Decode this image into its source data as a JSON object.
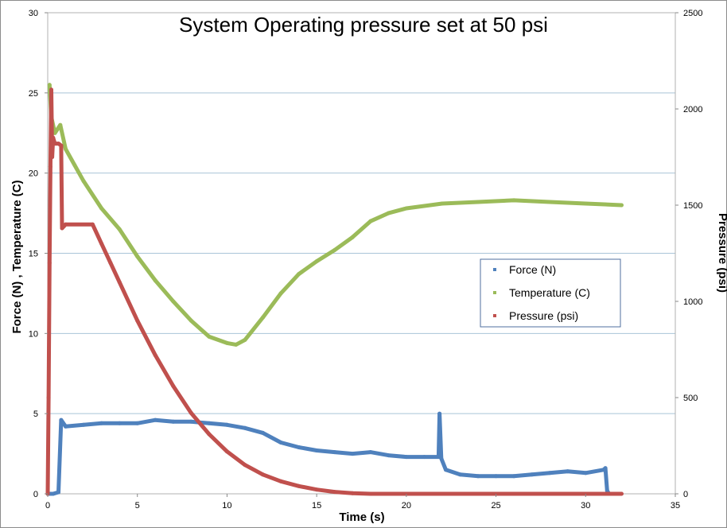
{
  "chart_data": {
    "type": "scatter",
    "title": "System Operating pressure set at 50 psi",
    "xlabel": "Time (s)",
    "ylabel_left": "Force (N) , Temperature (C)",
    "ylabel_right": "Pressure (psi)",
    "xlim": [
      0,
      35
    ],
    "ylim_left": [
      0,
      30
    ],
    "ylim_right": [
      0,
      2500
    ],
    "x_ticks": [
      "0",
      "5",
      "10",
      "15",
      "20",
      "25",
      "30",
      "35"
    ],
    "y_ticks_left": [
      "0",
      "5",
      "10",
      "15",
      "20",
      "25",
      "30"
    ],
    "y_ticks_right": [
      "0",
      "500",
      "1000",
      "1500",
      "2000",
      "2500"
    ],
    "grid": "horizontal",
    "legend_position": "right-center",
    "series": [
      {
        "name": "Force (N)",
        "axis": "left",
        "color": "#4f81bd",
        "points": [
          [
            0,
            0
          ],
          [
            0.3,
            0
          ],
          [
            0.6,
            0.1
          ],
          [
            0.75,
            4.6
          ],
          [
            1,
            4.2
          ],
          [
            2,
            4.3
          ],
          [
            3,
            4.4
          ],
          [
            4,
            4.4
          ],
          [
            5,
            4.4
          ],
          [
            6,
            4.6
          ],
          [
            7,
            4.5
          ],
          [
            8,
            4.5
          ],
          [
            9,
            4.4
          ],
          [
            10,
            4.3
          ],
          [
            11,
            4.1
          ],
          [
            12,
            3.8
          ],
          [
            13,
            3.2
          ],
          [
            14,
            2.9
          ],
          [
            15,
            2.7
          ],
          [
            16,
            2.6
          ],
          [
            17,
            2.5
          ],
          [
            18,
            2.6
          ],
          [
            19,
            2.4
          ],
          [
            20,
            2.3
          ],
          [
            21,
            2.3
          ],
          [
            21.8,
            2.3
          ],
          [
            21.85,
            5.0
          ],
          [
            21.95,
            2.2
          ],
          [
            22.2,
            1.5
          ],
          [
            23,
            1.2
          ],
          [
            24,
            1.1
          ],
          [
            25,
            1.1
          ],
          [
            26,
            1.1
          ],
          [
            27,
            1.2
          ],
          [
            28,
            1.3
          ],
          [
            29,
            1.4
          ],
          [
            30,
            1.3
          ],
          [
            31,
            1.5
          ],
          [
            31.1,
            1.6
          ],
          [
            31.2,
            0.2
          ],
          [
            31.3,
            0
          ]
        ]
      },
      {
        "name": "Temperature (C)",
        "axis": "left",
        "color": "#9bbb59",
        "points": [
          [
            0.1,
            25.5
          ],
          [
            0.2,
            23.5
          ],
          [
            0.4,
            22.5
          ],
          [
            0.7,
            23.0
          ],
          [
            1,
            21.5
          ],
          [
            1.5,
            20.5
          ],
          [
            2,
            19.5
          ],
          [
            3,
            17.8
          ],
          [
            4,
            16.5
          ],
          [
            5,
            14.8
          ],
          [
            6,
            13.3
          ],
          [
            7,
            12.0
          ],
          [
            8,
            10.8
          ],
          [
            9,
            9.8
          ],
          [
            10,
            9.4
          ],
          [
            10.5,
            9.3
          ],
          [
            11,
            9.6
          ],
          [
            12,
            11.0
          ],
          [
            13,
            12.5
          ],
          [
            14,
            13.7
          ],
          [
            15,
            14.5
          ],
          [
            16,
            15.2
          ],
          [
            17,
            16.0
          ],
          [
            18,
            17.0
          ],
          [
            19,
            17.5
          ],
          [
            20,
            17.8
          ],
          [
            22,
            18.1
          ],
          [
            24,
            18.2
          ],
          [
            26,
            18.3
          ],
          [
            28,
            18.2
          ],
          [
            30,
            18.1
          ],
          [
            32,
            18.0
          ]
        ]
      },
      {
        "name": "Pressure (psi)",
        "axis": "right",
        "color": "#c0504d",
        "points": [
          [
            0,
            0
          ],
          [
            0.05,
            500
          ],
          [
            0.1,
            1200
          ],
          [
            0.15,
            1700
          ],
          [
            0.2,
            2100
          ],
          [
            0.25,
            1750
          ],
          [
            0.3,
            1850
          ],
          [
            0.4,
            1820
          ],
          [
            0.6,
            1820
          ],
          [
            0.75,
            1810
          ],
          [
            0.8,
            1380
          ],
          [
            0.9,
            1390
          ],
          [
            1,
            1400
          ],
          [
            2.5,
            1400
          ],
          [
            3,
            1300
          ],
          [
            3.5,
            1200
          ],
          [
            4,
            1100
          ],
          [
            5,
            900
          ],
          [
            6,
            720
          ],
          [
            7,
            560
          ],
          [
            8,
            420
          ],
          [
            9,
            310
          ],
          [
            10,
            220
          ],
          [
            11,
            150
          ],
          [
            12,
            100
          ],
          [
            13,
            65
          ],
          [
            14,
            40
          ],
          [
            15,
            22
          ],
          [
            16,
            10
          ],
          [
            17,
            3
          ],
          [
            18,
            0
          ],
          [
            22,
            0
          ],
          [
            26,
            0
          ],
          [
            30,
            0
          ],
          [
            32,
            0
          ]
        ]
      }
    ]
  }
}
